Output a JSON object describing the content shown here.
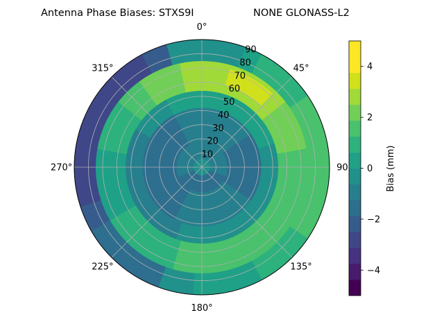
{
  "chart_data": {
    "type": "polar-contour",
    "title_left": "Antenna Phase Biases: STXS9I",
    "title_right": "NONE GLONASS-L2",
    "azimuth_ticks": [
      "0°",
      "45°",
      "90",
      "135°",
      "180°",
      "225°",
      "270°",
      "315°"
    ],
    "azimuth_tick_angles": [
      0,
      45,
      90,
      135,
      180,
      225,
      270,
      315
    ],
    "radial_ticks": [
      "10",
      "20",
      "30",
      "40",
      "50",
      "60",
      "70",
      "80",
      "90"
    ],
    "radial_tick_values": [
      10,
      20,
      30,
      40,
      50,
      60,
      70,
      80,
      90
    ],
    "rlim": [
      0,
      90
    ],
    "theta_zero": "top",
    "theta_direction": "clockwise",
    "grid": true,
    "colorbar": {
      "label": "Bias (mm)",
      "ticks": [
        "−4",
        "−2",
        "0",
        "2",
        "4"
      ],
      "tick_values": [
        -4,
        -2,
        0,
        2,
        4
      ],
      "range": [
        -5,
        5
      ],
      "levels": [
        -5,
        -4.375,
        -3.75,
        -3.125,
        -2.5,
        -1.875,
        -1.25,
        -0.625,
        0,
        0.625,
        1.25,
        1.875,
        2.5,
        3.125,
        3.75,
        4.375,
        5
      ],
      "colormap": "viridis"
    },
    "field_approx": {
      "description_values_mm": "bias in mm by zenith-angle ring and azimuth sector",
      "center": -0.7,
      "ring_20_40": -1.2,
      "ring_40_55": -0.6,
      "ring_55_75": 1.6,
      "ring_75_90_east": 0.2,
      "ring_75_90_west": -2.4,
      "max_northeast": 3.6
    }
  }
}
